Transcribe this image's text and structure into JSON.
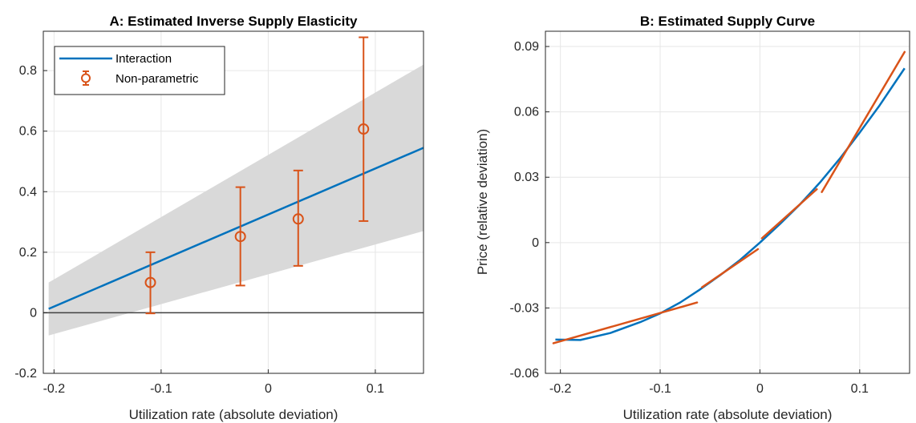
{
  "chart_data": [
    {
      "type": "line",
      "title": "A: Estimated Inverse Supply Elasticity",
      "xlabel": "Utilization rate (absolute deviation)",
      "ylabel": "",
      "xlim": [
        -0.21,
        0.145
      ],
      "ylim": [
        -0.2,
        0.93
      ],
      "xticks": [
        -0.2,
        -0.1,
        0,
        0.1
      ],
      "xtick_labels": [
        "-0.2",
        "-0.1",
        "0",
        "0.1"
      ],
      "yticks": [
        -0.2,
        0,
        0.2,
        0.4,
        0.6,
        0.8
      ],
      "ytick_labels": [
        "-0.2",
        "0",
        "0.2",
        "0.4",
        "0.6",
        "0.8"
      ],
      "grid": true,
      "legend_placement": "top-left",
      "colors": {
        "line": "#0072BD",
        "errorbar": "#D95319",
        "band": "#d9d9d9",
        "zero": "#404040"
      },
      "series": [
        {
          "name": "Interaction",
          "kind": "line",
          "x": [
            -0.205,
            0.145
          ],
          "y": [
            0.013,
            0.545
          ]
        }
      ],
      "band": {
        "x": [
          -0.205,
          0.145
        ],
        "lower": [
          -0.075,
          0.27
        ],
        "upper": [
          0.1,
          0.82
        ]
      },
      "errorbars": {
        "name": "Non-parametric",
        "x": [
          -0.11,
          -0.026,
          0.028,
          0.089
        ],
        "y": [
          0.1,
          0.252,
          0.31,
          0.607
        ],
        "lower": [
          -0.002,
          0.09,
          0.155,
          0.303
        ],
        "upper": [
          0.2,
          0.415,
          0.47,
          0.91
        ]
      },
      "zero_line": 0
    },
    {
      "type": "line",
      "title": "B: Estimated Supply Curve",
      "xlabel": "Utilization rate (absolute deviation)",
      "ylabel": "Price (relative deviation)",
      "xlim": [
        -0.215,
        0.15
      ],
      "ylim": [
        -0.06,
        0.097
      ],
      "xticks": [
        -0.2,
        -0.1,
        0,
        0.1
      ],
      "xtick_labels": [
        "-0.2",
        "-0.1",
        "0",
        "0.1"
      ],
      "yticks": [
        -0.06,
        -0.03,
        0,
        0.03,
        0.06,
        0.09
      ],
      "ytick_labels": [
        "-0.06",
        "-0.03",
        "0",
        "0.03",
        "0.06",
        "0.09"
      ],
      "grid": true,
      "colors": {
        "curve": "#0072BD",
        "segments": "#D95319"
      },
      "series": [
        {
          "kind": "curve",
          "x": [
            -0.205,
            -0.18,
            -0.15,
            -0.12,
            -0.1,
            -0.08,
            -0.06,
            -0.04,
            -0.02,
            0,
            0.02,
            0.04,
            0.06,
            0.08,
            0.1,
            0.12,
            0.145
          ],
          "y": [
            -0.0445,
            -0.0447,
            -0.0415,
            -0.0365,
            -0.0325,
            -0.0275,
            -0.0215,
            -0.015,
            -0.008,
            0,
            0.0085,
            0.0175,
            0.0275,
            0.0385,
            0.0505,
            0.063,
            0.08
          ]
        }
      ],
      "segments": [
        {
          "x": [
            -0.207,
            -0.063
          ],
          "y": [
            -0.0462,
            -0.0275
          ]
        },
        {
          "x": [
            -0.058,
            -0.002
          ],
          "y": [
            -0.0205,
            -0.003
          ]
        },
        {
          "x": [
            0.002,
            0.057
          ],
          "y": [
            0.002,
            0.0245
          ]
        },
        {
          "x": [
            0.062,
            0.145
          ],
          "y": [
            0.0232,
            0.0875
          ]
        }
      ]
    }
  ]
}
